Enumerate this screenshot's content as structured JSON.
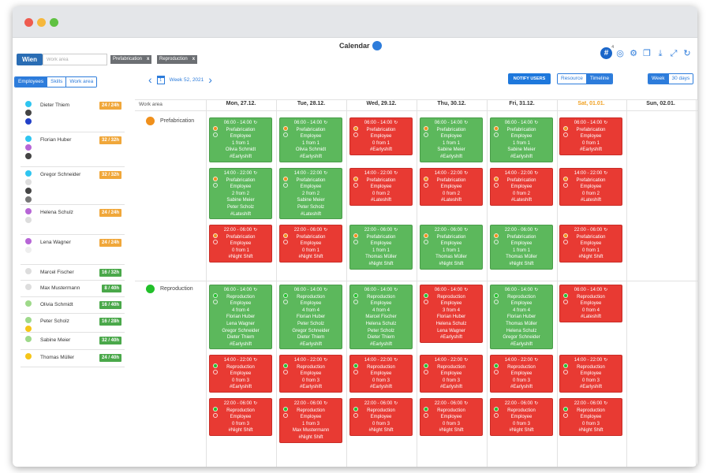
{
  "calendar": {
    "title": "Calendar"
  },
  "location": "Wien",
  "workarea_filter": {
    "placeholder": "Work area"
  },
  "chips": [
    {
      "label": "Prefabrication"
    },
    {
      "label": "Reproduction"
    }
  ],
  "left_tabs": [
    {
      "label": "Employees",
      "active": true
    },
    {
      "label": "Skills",
      "active": false
    },
    {
      "label": "Work area",
      "active": false
    }
  ],
  "week_nav": {
    "label": "Week 52, 2021",
    "calendar_day": "1"
  },
  "notify_label": "NOTIFY USERS",
  "view_toggle": [
    {
      "label": "Resource",
      "active": false
    },
    {
      "label": "Timeline",
      "active": true
    }
  ],
  "range_toggle": [
    {
      "label": "Week",
      "active": true
    },
    {
      "label": "30 days",
      "active": false
    }
  ],
  "toolbar": {
    "hash_badge": "4"
  },
  "colors": {
    "accent": "#2d7cdb",
    "green": "#5cb85c",
    "red": "#e83a33",
    "orange": "#f0a020",
    "prefab": "#f0901c",
    "repro": "#22c02a"
  },
  "employees": [
    {
      "name": "Dieter Thiem",
      "hours": "24 / 24h",
      "badge_color": "#f0a73a",
      "dots": [
        "#2fc5f0",
        "#444444",
        "#2240c8"
      ]
    },
    {
      "name": "Florian Huber",
      "hours": "32 / 32h",
      "badge_color": "#f0a73a",
      "dots": [
        "#2fc5f0",
        "#b765d6",
        "#444444"
      ]
    },
    {
      "name": "Gregor Schneider",
      "hours": "32 / 32h",
      "badge_color": "#f0a73a",
      "dots": [
        "#2fc5f0",
        "#dddddd",
        "#444444",
        "#777777"
      ]
    },
    {
      "name": "Helena Schulz",
      "hours": "24 / 24h",
      "badge_color": "#f0a73a",
      "dots": [
        "#b765d6",
        "#dddddd"
      ]
    },
    {
      "name": "Lena Wagner",
      "hours": "24 / 24h",
      "badge_color": "#f0a73a",
      "dots": [
        "#b765d6",
        "#eeeeee"
      ]
    },
    {
      "name": "Marcel Fischer",
      "hours": "16 / 32h",
      "badge_color": "#4aa84a",
      "dots": [
        "#dddddd"
      ]
    },
    {
      "name": "Max Mustermann",
      "hours": "8 / 40h",
      "badge_color": "#4aa84a",
      "dots": [
        "#dddddd"
      ]
    },
    {
      "name": "Olivia Schmidt",
      "hours": "16 / 40h",
      "badge_color": "#4aa84a",
      "dots": [
        "#9ed98a"
      ]
    },
    {
      "name": "Peter Scholz",
      "hours": "16 / 28h",
      "badge_color": "#4aa84a",
      "dots": [
        "#9ed98a",
        "#f5c518"
      ]
    },
    {
      "name": "Sabine Meier",
      "hours": "32 / 40h",
      "badge_color": "#4aa84a",
      "dots": [
        "#9ed98a"
      ]
    },
    {
      "name": "Thomas Müller",
      "hours": "24 / 40h",
      "badge_color": "#4aa84a",
      "dots": [
        "#f5c518"
      ]
    }
  ],
  "grid": {
    "workarea_header": "Work area",
    "days": [
      "Mon, 27.12.",
      "Tue, 28.12.",
      "Wed, 29.12.",
      "Thu, 30.12.",
      "Fri, 31.12.",
      "Sat, 01.01.",
      "Sun, 02.01."
    ],
    "workareas": [
      {
        "name": "Prefabrication",
        "color": "#f0901c"
      },
      {
        "name": "Reproduction",
        "color": "#22c02a"
      }
    ]
  },
  "shifts": [
    {
      "day": 0,
      "row": 0,
      "color": "green",
      "lines": [
        "06:00 - 14:00",
        "Prefabrication",
        "Employee",
        "1 from 1",
        "Olivia Schmidt",
        "#Earlyshift"
      ]
    },
    {
      "day": 1,
      "row": 0,
      "color": "green",
      "lines": [
        "06:00 - 14:00",
        "Prefabrication",
        "Employee",
        "1 from 1",
        "Olivia Schmidt",
        "#Earlyshift"
      ]
    },
    {
      "day": 2,
      "row": 0,
      "color": "red",
      "lines": [
        "06:00 - 14:00",
        "Prefabrication",
        "Employee",
        "0 from 1",
        "#Earlyshift"
      ]
    },
    {
      "day": 3,
      "row": 0,
      "color": "green",
      "lines": [
        "06:00 - 14:00",
        "Prefabrication",
        "Employee",
        "1 from 1",
        "Sabine Meier",
        "#Earlyshift"
      ]
    },
    {
      "day": 4,
      "row": 0,
      "color": "green",
      "lines": [
        "06:00 - 14:00",
        "Prefabrication",
        "Employee",
        "1 from 1",
        "Sabine Meier",
        "#Earlyshift"
      ]
    },
    {
      "day": 5,
      "row": 0,
      "color": "red",
      "lines": [
        "06:00 - 14:00",
        "Prefabrication",
        "Employee",
        "0 from 1",
        "#Earlyshift"
      ]
    },
    {
      "day": 0,
      "row": 1,
      "color": "green",
      "lines": [
        "14:00 - 22:00",
        "Prefabrication",
        "Employee",
        "2 from 2",
        "Sabine Meier",
        "Peter Scholz",
        "#Lateshift"
      ]
    },
    {
      "day": 1,
      "row": 1,
      "color": "green",
      "lines": [
        "14:00 - 22:00",
        "Prefabrication",
        "Employee",
        "2 from 2",
        "Sabine Meier",
        "Peter Scholz",
        "#Lateshift"
      ]
    },
    {
      "day": 2,
      "row": 1,
      "color": "red",
      "lines": [
        "14:00 - 22:00",
        "Prefabrication",
        "Employee",
        "0 from 2",
        "#Lateshift"
      ]
    },
    {
      "day": 3,
      "row": 1,
      "color": "red",
      "lines": [
        "14:00 - 22:00",
        "Prefabrication",
        "Employee",
        "0 from 2",
        "#Lateshift"
      ]
    },
    {
      "day": 4,
      "row": 1,
      "color": "red",
      "lines": [
        "14:00 - 22:00",
        "Prefabrication",
        "Employee",
        "0 from 2",
        "#Lateshift"
      ]
    },
    {
      "day": 5,
      "row": 1,
      "color": "red",
      "lines": [
        "14:00 - 22:00",
        "Prefabrication",
        "Employee",
        "0 from 2",
        "#Lateshift"
      ]
    },
    {
      "day": 0,
      "row": 2,
      "color": "red",
      "lines": [
        "22:00 - 06:00",
        "Prefabrication",
        "Employee",
        "0 from 1",
        "#Night Shift"
      ]
    },
    {
      "day": 1,
      "row": 2,
      "color": "red",
      "lines": [
        "22:00 - 06:00",
        "Prefabrication",
        "Employee",
        "0 from 1",
        "#Night Shift"
      ]
    },
    {
      "day": 2,
      "row": 2,
      "color": "green",
      "lines": [
        "22:00 - 06:00",
        "Prefabrication",
        "Employee",
        "1 from 1",
        "Thomas Müller",
        "#Night Shift"
      ]
    },
    {
      "day": 3,
      "row": 2,
      "color": "green",
      "lines": [
        "22:00 - 06:00",
        "Prefabrication",
        "Employee",
        "1 from 1",
        "Thomas Müller",
        "#Night Shift"
      ]
    },
    {
      "day": 4,
      "row": 2,
      "color": "green",
      "lines": [
        "22:00 - 06:00",
        "Prefabrication",
        "Employee",
        "1 from 1",
        "Thomas Müller",
        "#Night Shift"
      ]
    },
    {
      "day": 5,
      "row": 2,
      "color": "red",
      "lines": [
        "22:00 - 06:00",
        "Prefabrication",
        "Employee",
        "0 from 1",
        "#Night Shift"
      ]
    },
    {
      "day": 0,
      "row": 3,
      "color": "green",
      "lines": [
        "06:00 - 14:00",
        "Reproduction",
        "Employee",
        "4 from 4",
        "Florian Huber",
        "Lena Wagner",
        "Gregor Schneider",
        "Dieter Thiem",
        "#Earlyshift"
      ]
    },
    {
      "day": 1,
      "row": 3,
      "color": "green",
      "lines": [
        "06:00 - 14:00",
        "Reproduction",
        "Employee",
        "4 from 4",
        "Florian Huber",
        "Peter Scholz",
        "Gregor Schneider",
        "Dieter Thiem",
        "#Earlyshift"
      ]
    },
    {
      "day": 2,
      "row": 3,
      "color": "green",
      "lines": [
        "06:00 - 14:00",
        "Reproduction",
        "Employee",
        "4 from 4",
        "Marcel Fischer",
        "Helena Schulz",
        "Peter Scholz",
        "Dieter Thiem",
        "#Earlyshift"
      ]
    },
    {
      "day": 3,
      "row": 3,
      "color": "red",
      "lines": [
        "06:00 - 14:00",
        "Reproduction",
        "Employee",
        "3 from 4",
        "Florian Huber",
        "Helena Schulz",
        "Lena Wagner",
        "#Earlyshift"
      ]
    },
    {
      "day": 4,
      "row": 3,
      "color": "green",
      "lines": [
        "06:00 - 14:00",
        "Reproduction",
        "Employee",
        "4 from 4",
        "Florian Huber",
        "Thomas Müller",
        "Helena Schulz",
        "Gregor Schneider",
        "#Earlyshift"
      ]
    },
    {
      "day": 5,
      "row": 3,
      "color": "red",
      "lines": [
        "06:00 - 14:00",
        "Reproduction",
        "Employee",
        "0 from 4",
        "#Lateshift"
      ]
    },
    {
      "day": 0,
      "row": 4,
      "color": "red",
      "lines": [
        "14:00 - 22:00",
        "Reproduction",
        "Employee",
        "0 from 3",
        "#Earlyshift"
      ]
    },
    {
      "day": 1,
      "row": 4,
      "color": "red",
      "lines": [
        "14:00 - 22:00",
        "Reproduction",
        "Employee",
        "0 from 3",
        "#Earlyshift"
      ]
    },
    {
      "day": 2,
      "row": 4,
      "color": "red",
      "lines": [
        "14:00 - 22:00",
        "Reproduction",
        "Employee",
        "0 from 3",
        "#Earlyshift"
      ]
    },
    {
      "day": 3,
      "row": 4,
      "color": "red",
      "lines": [
        "14:00 - 22:00",
        "Reproduction",
        "Employee",
        "0 from 3",
        "#Earlyshift"
      ]
    },
    {
      "day": 4,
      "row": 4,
      "color": "red",
      "lines": [
        "14:00 - 22:00",
        "Reproduction",
        "Employee",
        "0 from 3",
        "#Earlyshift"
      ]
    },
    {
      "day": 5,
      "row": 4,
      "color": "red",
      "lines": [
        "14:00 - 22:00",
        "Reproduction",
        "Employee",
        "0 from 3",
        "#Earlyshift"
      ]
    },
    {
      "day": 0,
      "row": 5,
      "color": "red",
      "lines": [
        "22:00 - 06:00",
        "Reproduction",
        "Employee",
        "0 from 3",
        "#Night Shift"
      ]
    },
    {
      "day": 1,
      "row": 5,
      "color": "red",
      "lines": [
        "22:00 - 06:00",
        "Reproduction",
        "Employee",
        "1 from 3",
        "Max Mustermann",
        "#Night Shift"
      ]
    },
    {
      "day": 2,
      "row": 5,
      "color": "red",
      "lines": [
        "22:00 - 06:00",
        "Reproduction",
        "Employee",
        "0 from 3",
        "#Night Shift"
      ]
    },
    {
      "day": 3,
      "row": 5,
      "color": "red",
      "lines": [
        "22:00 - 06:00",
        "Reproduction",
        "Employee",
        "0 from 3",
        "#Night Shift"
      ]
    },
    {
      "day": 4,
      "row": 5,
      "color": "red",
      "lines": [
        "22:00 - 06:00",
        "Reproduction",
        "Employee",
        "0 from 3",
        "#Night Shift"
      ]
    },
    {
      "day": 5,
      "row": 5,
      "color": "red",
      "lines": [
        "22:00 - 06:00",
        "Reproduction",
        "Employee",
        "0 from 3",
        "#Night Shift"
      ]
    }
  ]
}
